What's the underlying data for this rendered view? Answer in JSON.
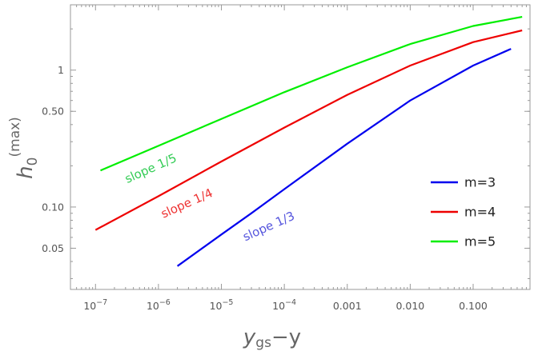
{
  "chart_data": {
    "type": "line",
    "xscale": "log",
    "yscale": "log",
    "xlim": [
      4e-08,
      0.8
    ],
    "ylim": [
      0.025,
      3.0
    ],
    "xlabel_main": "y",
    "xlabel_sub": "gs",
    "xlabel_tail": "−y",
    "ylabel_main": "h",
    "ylabel_sub": "0",
    "ylabel_sup": "(max)",
    "grid": false,
    "legend_position": "right",
    "x_ticks": [
      {
        "value": 1e-07,
        "base": "10",
        "exp": "−7"
      },
      {
        "value": 1e-06,
        "base": "10",
        "exp": "−6"
      },
      {
        "value": 1e-05,
        "base": "10",
        "exp": "−5"
      },
      {
        "value": 0.0001,
        "base": "10",
        "exp": "−4"
      },
      {
        "value": 0.001,
        "label": "0.001"
      },
      {
        "value": 0.01,
        "label": "0.010"
      },
      {
        "value": 0.1,
        "label": "0.100"
      }
    ],
    "y_ticks": [
      {
        "value": 0.05,
        "label": "0.05"
      },
      {
        "value": 0.1,
        "label": "0.10"
      },
      {
        "value": 0.5,
        "label": "0.50"
      },
      {
        "value": 1,
        "label": "1"
      }
    ],
    "series": [
      {
        "name": "m=3",
        "color": "#0000ee",
        "x": [
          2e-06,
          1e-05,
          3e-05,
          0.0001,
          0.001,
          0.01,
          0.1,
          0.4
        ],
        "y": [
          0.037,
          0.063,
          0.09,
          0.135,
          0.29,
          0.6,
          1.08,
          1.43
        ]
      },
      {
        "name": "m=4",
        "color": "#ee0000",
        "x": [
          1e-07,
          1e-06,
          1e-05,
          0.0001,
          0.001,
          0.01,
          0.1,
          0.6
        ],
        "y": [
          0.068,
          0.12,
          0.215,
          0.38,
          0.66,
          1.08,
          1.6,
          1.95
        ]
      },
      {
        "name": "m=5",
        "color": "#00ee00",
        "x": [
          1.2e-07,
          1e-06,
          1e-05,
          0.0001,
          0.001,
          0.01,
          0.1,
          0.6
        ],
        "y": [
          0.185,
          0.28,
          0.44,
          0.69,
          1.05,
          1.55,
          2.1,
          2.45
        ]
      }
    ],
    "annotations": [
      {
        "text": "slope 1/3",
        "color": "#5555dd",
        "x": 6e-05,
        "y": 0.068
      },
      {
        "text": "slope 1/4",
        "color": "#ee3333",
        "x": 3e-06,
        "y": 0.1
      },
      {
        "text": "slope 1/5",
        "color": "#33cc55",
        "x": 8e-07,
        "y": 0.18
      }
    ]
  }
}
